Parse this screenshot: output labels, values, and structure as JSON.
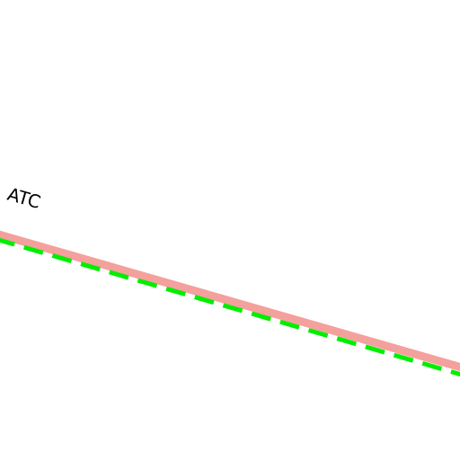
{
  "labels": [
    {
      "text": "ATC"
    }
  ]
}
